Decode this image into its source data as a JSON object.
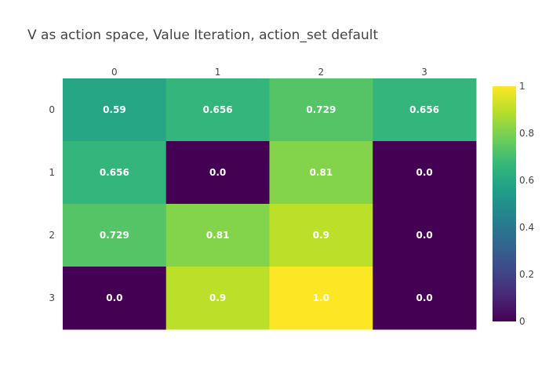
{
  "chart_data": {
    "type": "heatmap",
    "title": "V as action space, Value Iteration, action_set default",
    "x_categories": [
      "0",
      "1",
      "2",
      "3"
    ],
    "y_categories": [
      "0",
      "1",
      "2",
      "3"
    ],
    "z": [
      [
        0.59,
        0.656,
        0.729,
        0.656
      ],
      [
        0.656,
        0.0,
        0.81,
        0.0
      ],
      [
        0.729,
        0.81,
        0.9,
        0.0
      ],
      [
        0.0,
        0.9,
        1.0,
        0.0
      ]
    ],
    "cell_labels": [
      [
        "0.59",
        "0.656",
        "0.729",
        "0.656"
      ],
      [
        "0.656",
        "0.0",
        "0.81",
        "0.0"
      ],
      [
        "0.729",
        "0.81",
        "0.9",
        "0.0"
      ],
      [
        "0.0",
        "0.9",
        "1.0",
        "0.0"
      ]
    ],
    "x_axis_position": "top",
    "y_axis_reversed": true,
    "zlim": [
      0,
      1
    ],
    "colorscale": "Viridis",
    "colorbar": {
      "ticks": [
        0,
        0.2,
        0.4,
        0.6,
        0.8,
        1
      ],
      "tick_labels": [
        "0",
        "0.2",
        "0.4",
        "0.6",
        "0.8",
        "1"
      ]
    },
    "colors": {
      "background": "#ffffff",
      "text": "#444444",
      "cell_text": "#ffffff"
    }
  }
}
